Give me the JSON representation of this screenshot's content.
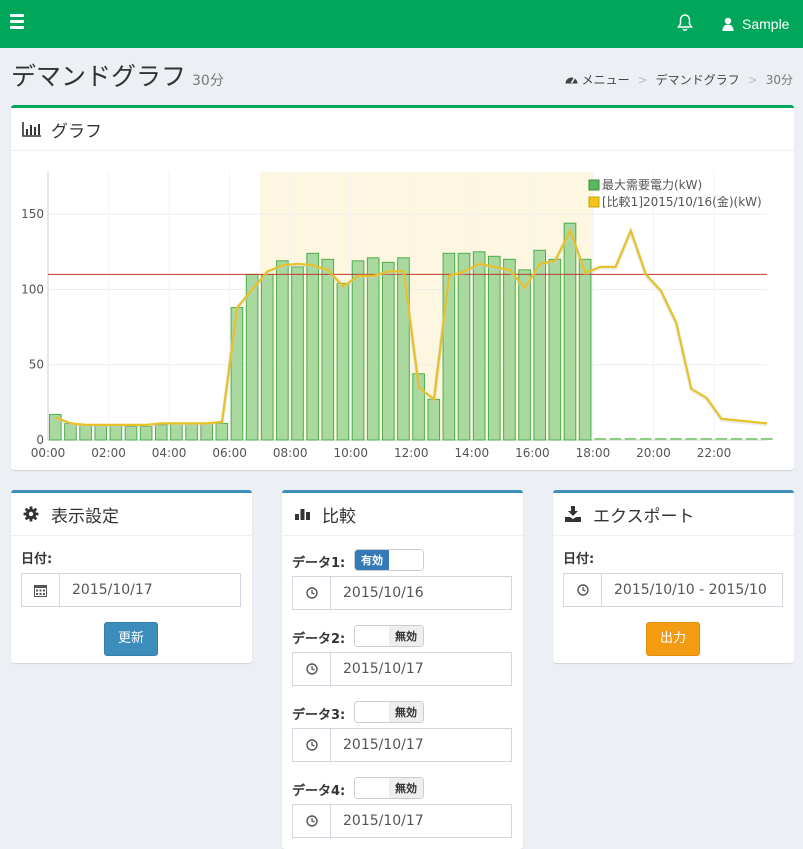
{
  "topbar": {
    "user_name": "Sample",
    "icons": [
      "hamburger-icon",
      "bell-icon",
      "user-icon"
    ],
    "color": "#00a65a"
  },
  "page": {
    "title": "デマンドグラフ",
    "subtitle": "30分"
  },
  "breadcrumb": {
    "home": "メニュー",
    "current": "デマンドグラフ",
    "sub": "30分"
  },
  "graph_panel": {
    "title": "グラフ"
  },
  "chart_data": {
    "type": "bar",
    "x_ticks": [
      "00:00",
      "02:00",
      "04:00",
      "06:00",
      "08:00",
      "10:00",
      "12:00",
      "14:00",
      "16:00",
      "18:00",
      "20:00",
      "22:00"
    ],
    "y_ticks": [
      "0",
      "50",
      "100",
      "150"
    ],
    "ylim": [
      0,
      178
    ],
    "xlim_hours": [
      0,
      23.75
    ],
    "highlight_range_hours": [
      7,
      18
    ],
    "highlight_color": "#fdf6e0",
    "target_line": 110,
    "target_line_color": "#c0392b",
    "series": [
      {
        "name": "最大需要電力(kW)",
        "type": "bar",
        "color": "#a9d99e",
        "edge_color": "#4cae4c",
        "values": [
          17,
          11,
          10,
          10,
          10,
          9,
          9,
          10,
          11,
          11,
          11,
          11,
          88,
          110,
          110,
          119,
          115,
          124,
          120,
          104,
          119,
          121,
          118,
          121,
          44,
          27,
          124,
          124,
          125,
          122,
          120,
          113,
          126,
          120,
          144,
          120,
          0,
          0,
          0,
          0,
          0,
          0,
          0,
          0,
          0,
          0,
          0,
          0
        ]
      },
      {
        "name": "[比較1]2015/10/16(金)(kW)",
        "type": "line",
        "color": "#e6c229",
        "values": [
          15,
          11,
          10,
          10,
          10,
          10,
          10,
          11,
          11,
          11,
          11,
          12,
          88,
          100,
          112,
          116,
          117,
          116,
          113,
          102,
          109,
          109,
          112,
          112,
          35,
          27,
          109,
          112,
          117,
          115,
          113,
          101,
          117,
          119,
          139,
          111,
          115,
          115,
          139,
          110,
          99,
          78,
          34,
          28,
          14,
          13,
          12,
          11
        ]
      }
    ]
  },
  "display_panel": {
    "title": "表示設定",
    "date_label": "日付:",
    "date_value": "2015/10/17",
    "update_button": "更新"
  },
  "compare_panel": {
    "title": "比較",
    "rows": [
      {
        "label": "データ1:",
        "toggle": "有効",
        "enabled": true,
        "date": "2015/10/16"
      },
      {
        "label": "データ2:",
        "toggle": "無効",
        "enabled": false,
        "date": "2015/10/17"
      },
      {
        "label": "データ3:",
        "toggle": "無効",
        "enabled": false,
        "date": "2015/10/17"
      },
      {
        "label": "データ4:",
        "toggle": "無効",
        "enabled": false,
        "date": "2015/10/17"
      }
    ]
  },
  "export_panel": {
    "title": "エクスポート",
    "date_label": "日付:",
    "date_value": "2015/10/10 - 2015/10",
    "output_button": "出力"
  }
}
